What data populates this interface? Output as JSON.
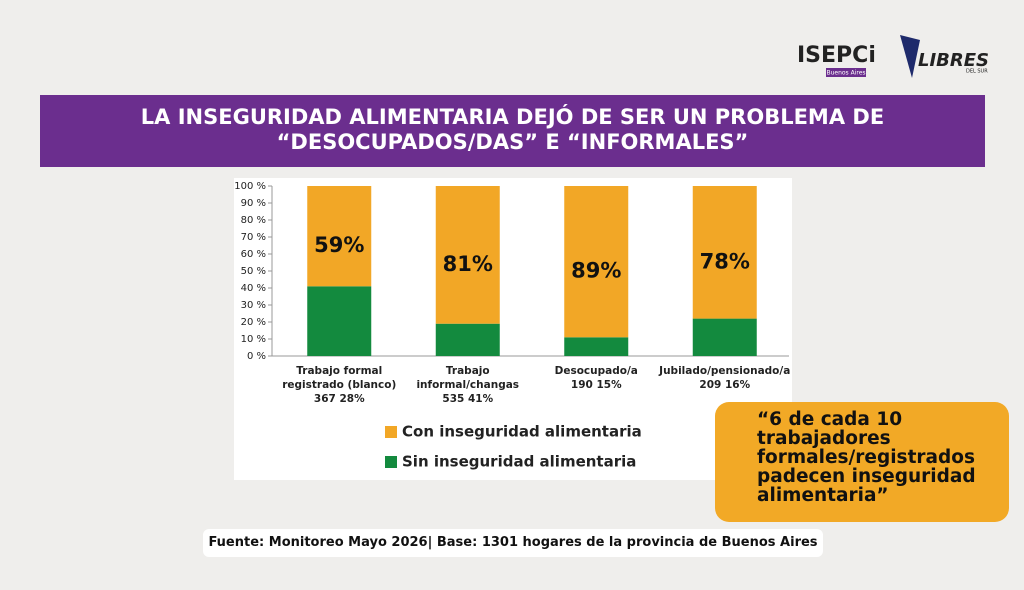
{
  "logos": {
    "isepci": "ISEPCi",
    "isepci_sub": "Buenos Aires",
    "libres": "LIBRES",
    "libres_sub": "DEL SUR"
  },
  "banner": {
    "lines": [
      "LA INSEGURIDAD ALIMENTARIA DEJÓ DE SER UN PROBLEMA DE",
      "“DESOCUPADOS/DAS” E “INFORMALES”"
    ]
  },
  "chart_data": {
    "type": "stacked_bar",
    "categories": [
      [
        "Trabajo formal",
        "registrado (blanco)",
        "367 28%"
      ],
      [
        "Trabajo",
        "informal/changas",
        "535 41%"
      ],
      [
        "Desocupado/a",
        "190  15%"
      ],
      [
        "Jubilado/pensionado/a",
        "209  16%"
      ]
    ],
    "series": [
      {
        "name": "Sin inseguridad alimentaria",
        "color": "#138a3e",
        "values": [
          41,
          19,
          11,
          22
        ]
      },
      {
        "name": "Con inseguridad alimentaria",
        "color": "#f2a726",
        "values": [
          59,
          81,
          89,
          78
        ],
        "value_labels": [
          "59%",
          "81%",
          "89%",
          "78%"
        ]
      }
    ],
    "ylim": [
      0,
      100
    ],
    "yticks": [
      {
        "value": 0,
        "label": "0 %"
      },
      {
        "value": 10,
        "label": "10 %"
      },
      {
        "value": 20,
        "label": "20 %"
      },
      {
        "value": 30,
        "label": "30 %"
      },
      {
        "value": 40,
        "label": "40 %"
      },
      {
        "value": 50,
        "label": "50 %"
      },
      {
        "value": 60,
        "label": "60 %"
      },
      {
        "value": 70,
        "label": "70 %"
      },
      {
        "value": 80,
        "label": "80 %"
      },
      {
        "value": 90,
        "label": "90 %"
      },
      {
        "value": 100,
        "label": "100 %"
      }
    ],
    "grid": false,
    "legend": "bottom"
  },
  "callout": {
    "lines": [
      "“6 de cada 10",
      "trabajadores",
      "formales/registrados",
      "padecen inseguridad",
      "alimentaria”"
    ]
  },
  "footer": "Fuente: Monitoreo Mayo 2026| Base: 1301 hogares de la provincia de Buenos Aires"
}
